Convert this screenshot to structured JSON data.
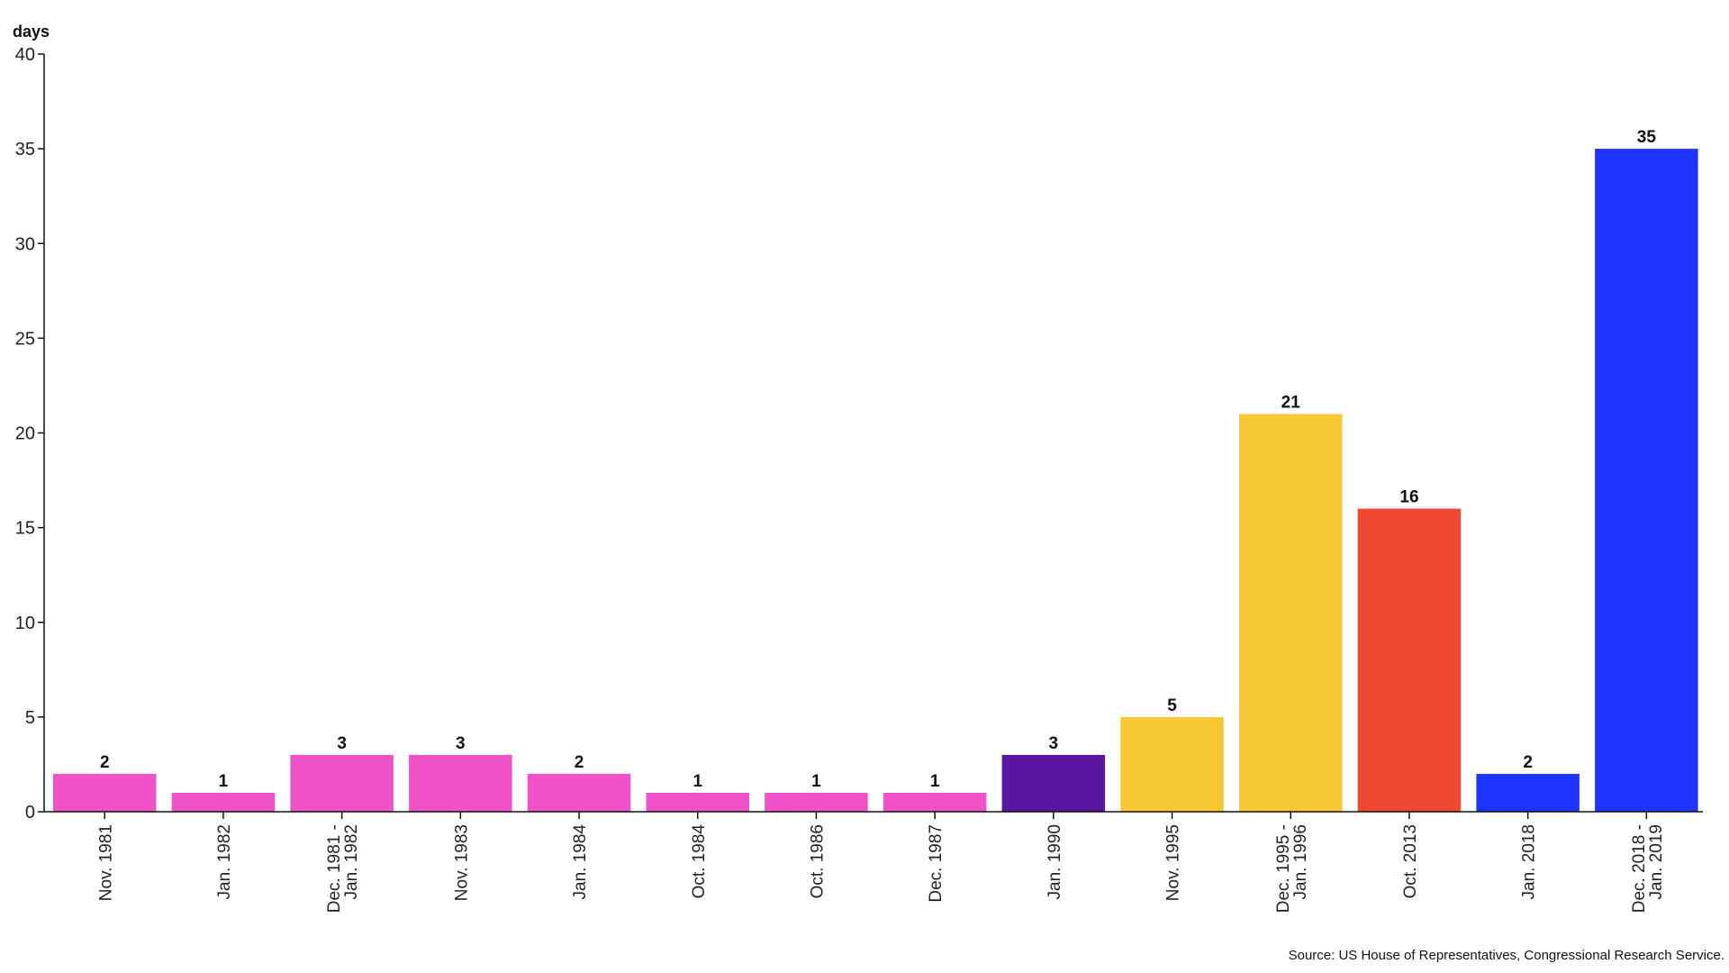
{
  "chart_data": {
    "type": "bar",
    "title": "",
    "ylabel": "days",
    "xlabel": "",
    "ylim": [
      0,
      40
    ],
    "yticks": [
      0,
      5,
      10,
      15,
      20,
      25,
      30,
      35,
      40
    ],
    "grid": false,
    "categories": [
      [
        "Nov. 1981"
      ],
      [
        "Jan. 1982"
      ],
      [
        "Dec. 1981 -",
        "Jan. 1982"
      ],
      [
        "Nov. 1983"
      ],
      [
        "Jan. 1984"
      ],
      [
        "Oct. 1984"
      ],
      [
        "Oct. 1986"
      ],
      [
        "Dec. 1987"
      ],
      [
        "Jan. 1990"
      ],
      [
        "Nov. 1995"
      ],
      [
        "Dec. 1995 -",
        "Jan. 1996"
      ],
      [
        "Oct. 2013"
      ],
      [
        "Jan. 2018"
      ],
      [
        "Dec. 2018 -",
        "Jan. 2019"
      ]
    ],
    "values": [
      2,
      1,
      3,
      3,
      2,
      1,
      1,
      1,
      3,
      5,
      21,
      16,
      2,
      35
    ],
    "colors": [
      "#f052c8",
      "#f052c8",
      "#f052c8",
      "#f052c8",
      "#f052c8",
      "#f052c8",
      "#f052c8",
      "#f052c8",
      "#5a16a0",
      "#f8c734",
      "#f8c734",
      "#f04733",
      "#1f35fd",
      "#1f35fd"
    ],
    "source": "Source: US House of Representatives, Congressional Research Service."
  }
}
